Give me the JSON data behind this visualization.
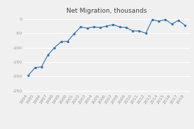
{
  "title": "Net Migration, thousands",
  "years": [
    1994,
    1995,
    1996,
    1997,
    1998,
    1999,
    2000,
    2001,
    2002,
    2003,
    2004,
    2005,
    2006,
    2007,
    2008,
    2009,
    2010,
    2011,
    2012,
    2013,
    2014,
    2015,
    2016,
    2017,
    2018
  ],
  "values": [
    -196,
    -170,
    -167,
    -125,
    -100,
    -80,
    -78,
    -52,
    -28,
    -32,
    -28,
    -30,
    -25,
    -20,
    -28,
    -30,
    -42,
    -42,
    -50,
    -2,
    -8,
    -2,
    -18,
    -5,
    -22
  ],
  "line_color": "#2c6fad",
  "marker_color": "#2c6fad",
  "bg_color": "#f0f0f0",
  "grid_color": "#ffffff",
  "ylim": [
    -258,
    12
  ],
  "yticks": [
    0,
    -50,
    -100,
    -150,
    -200,
    -250
  ],
  "title_fontsize": 6.5,
  "tick_fontsize": 4.5
}
